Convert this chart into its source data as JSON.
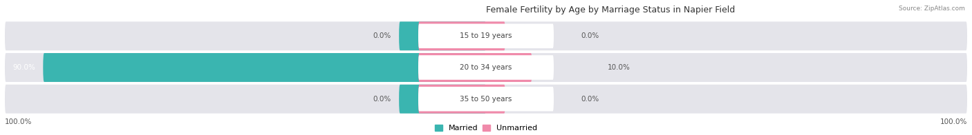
{
  "title": "Female Fertility by Age by Marriage Status in Napier Field",
  "source": "Source: ZipAtlas.com",
  "rows": [
    {
      "label": "15 to 19 years",
      "married": 0.0,
      "unmarried": 0.0
    },
    {
      "label": "20 to 34 years",
      "married": 90.0,
      "unmarried": 10.0
    },
    {
      "label": "35 to 50 years",
      "married": 0.0,
      "unmarried": 0.0
    }
  ],
  "married_color": "#3ab5b0",
  "unmarried_color": "#f08aaa",
  "bar_bg_color": "#e4e4ea",
  "label_color": "#444444",
  "title_color": "#333333",
  "source_color": "#888888",
  "axis_label_left": "100.0%",
  "axis_label_right": "100.0%",
  "legend_married": "Married",
  "legend_unmarried": "Unmarried",
  "center_label_bg": "#ffffff",
  "pct_color": "#555555",
  "married_text_color": "#ffffff"
}
